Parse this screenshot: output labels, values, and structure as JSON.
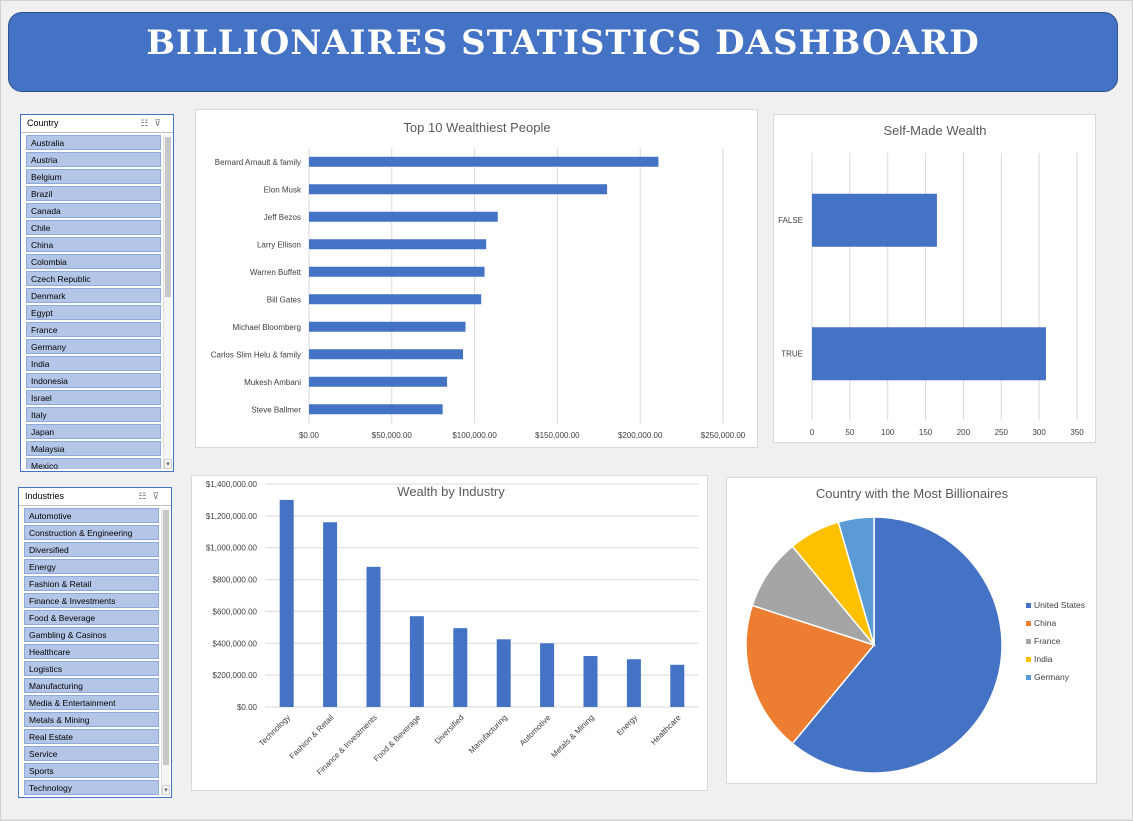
{
  "dashboard": {
    "title": "BILLIONAIRES STATISTICS DASHBOARD"
  },
  "colors": {
    "accent": "#4472c4",
    "slicer_item": "#b4c6e7"
  },
  "slicers": {
    "country": {
      "header": "Country",
      "items": [
        "Australia",
        "Austria",
        "Belgium",
        "Brazil",
        "Canada",
        "Chile",
        "China",
        "Colombia",
        "Czech Republic",
        "Denmark",
        "Egypt",
        "France",
        "Germany",
        "India",
        "Indonesia",
        "Israel",
        "Italy",
        "Japan",
        "Malaysia",
        "Mexico"
      ]
    },
    "industries": {
      "header": "Industries",
      "items": [
        "Automotive",
        "Construction & Engineering",
        "Diversified",
        "Energy",
        "Fashion & Retail",
        "Finance & Investments",
        "Food & Beverage",
        "Gambling & Casinos",
        "Healthcare",
        "Logistics",
        "Manufacturing",
        "Media & Entertainment",
        "Metals & Mining",
        "Real Estate",
        "Service",
        "Sports",
        "Technology"
      ]
    }
  },
  "chart_data": [
    {
      "id": "top10",
      "type": "bar",
      "orientation": "horizontal",
      "title": "Top 10 Wealthiest People",
      "categories": [
        "Bernard Arnault & family",
        "Elon Musk",
        "Jeff Bezos",
        "Larry Ellison",
        "Warren Buffett",
        "Bill Gates",
        "Michael Bloomberg",
        "Carlos Slim Helu & family",
        "Mukesh Ambani",
        "Steve Ballmer"
      ],
      "values": [
        211000,
        180000,
        114000,
        107000,
        106000,
        104000,
        94500,
        93000,
        83400,
        80700
      ],
      "xlim": [
        0,
        250000
      ],
      "xticks": [
        "$0.00",
        "$50,000.00",
        "$100,000.00",
        "$150,000.00",
        "$200,000.00",
        "$250,000.00"
      ],
      "grid": true
    },
    {
      "id": "selfmade",
      "type": "bar",
      "orientation": "horizontal",
      "title": "Self-Made Wealth",
      "categories": [
        "FALSE",
        "TRUE"
      ],
      "values": [
        165,
        309
      ],
      "xlim": [
        0,
        350
      ],
      "xticks": [
        "0",
        "50",
        "100",
        "150",
        "200",
        "250",
        "300",
        "350"
      ],
      "grid": true
    },
    {
      "id": "industry",
      "type": "bar",
      "title": "Wealth by Industry",
      "categories": [
        "Technology",
        "Fashion & Retail",
        "Finance & Investments",
        "Food & Beverage",
        "Diversified",
        "Manufacturing",
        "Automotive",
        "Metals & Mining",
        "Energy",
        "Healthcare"
      ],
      "values": [
        1300000,
        1160000,
        880000,
        570000,
        495000,
        425000,
        400000,
        320000,
        300000,
        265000
      ],
      "ylim": [
        0,
        1400000
      ],
      "yticks": [
        "$0.00",
        "$200,000.00",
        "$400,000.00",
        "$600,000.00",
        "$800,000.00",
        "$1,000,000.00",
        "$1,200,000.00",
        "$1,400,000.00"
      ],
      "grid": true
    },
    {
      "id": "countries",
      "type": "pie",
      "title": "Country with the Most Billionaires",
      "categories": [
        "United States",
        "China",
        "France",
        "India",
        "Germany"
      ],
      "values": [
        61,
        19,
        9,
        6.5,
        4.5
      ],
      "colors": [
        "#4472c4",
        "#ed7d31",
        "#a5a5a5",
        "#ffc000",
        "#5b9bd5"
      ],
      "legend": "right"
    }
  ]
}
